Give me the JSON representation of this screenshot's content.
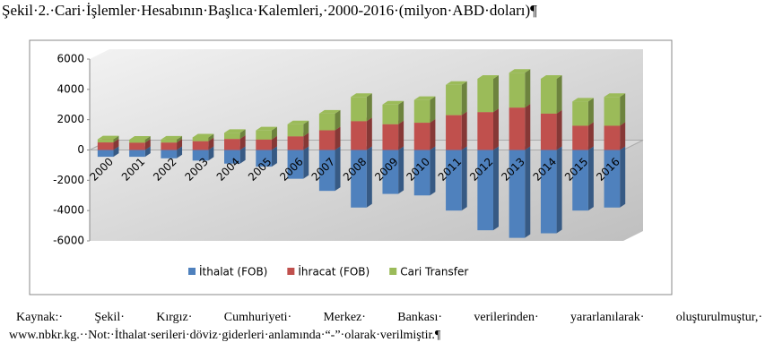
{
  "chart_data": {
    "type": "stacked-bar",
    "title": "Şekil·2.·Cari·İşlemler·Hesabının·Başlıca·Kalemleri,·2000-2016·(milyon·ABD·doları)¶",
    "categories": [
      "2000",
      "2001",
      "2002",
      "2003",
      "2004",
      "2005",
      "2006",
      "2007",
      "2008",
      "2009",
      "2010",
      "2011",
      "2012",
      "2013",
      "2014",
      "2015",
      "2016"
    ],
    "series": [
      {
        "name": "İthalat (FOB)",
        "color": "#4f81bd",
        "values": [
          -450,
          -450,
          -550,
          -700,
          -900,
          -1100,
          -1900,
          -2700,
          -3800,
          -2900,
          -3000,
          -4000,
          -5300,
          -5800,
          -5500,
          -4000,
          -3800
        ]
      },
      {
        "name": "İhracat (FOB)",
        "color": "#c0504d",
        "values": [
          500,
          480,
          490,
          580,
          730,
          690,
          900,
          1300,
          1900,
          1700,
          1800,
          2300,
          2500,
          2800,
          2400,
          1600,
          1600
        ]
      },
      {
        "name": "Cari Transfer",
        "color": "#9bbb59",
        "values": [
          200,
          200,
          200,
          250,
          400,
          600,
          800,
          1100,
          1600,
          1300,
          1500,
          2000,
          2200,
          2300,
          2300,
          1600,
          1900
        ]
      }
    ],
    "ylim": [
      -6000,
      6000
    ],
    "yticks": [
      -6000,
      -4000,
      -2000,
      0,
      2000,
      4000,
      6000
    ],
    "grid": false,
    "legend": "bottom",
    "note": "Kaynak:· Şekil· Kırgız· Cumhuriyeti· Merkez· Bankası· verilerinden· yararlanılarak· oluşturulmuştur,· www.nbkr.kg.··Not:·İthalat·serileri·döviz·giderleri·anlamında·“-”·olarak·verilmiştir.¶"
  }
}
